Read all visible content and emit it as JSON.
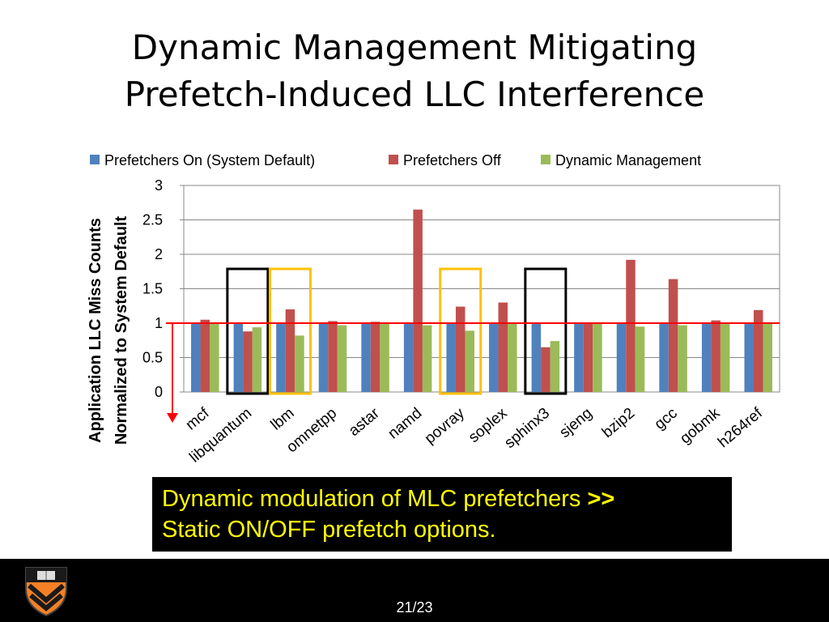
{
  "slide": {
    "title_line1": "Dynamic Management Mitigating",
    "title_line2": "Prefetch-Induced LLC Interference",
    "callout_text": "Dynamic modulation of MLC prefetchers ",
    "callout_bold": ">>",
    "callout_text2": "Static ON/OFF prefetch options.",
    "page_number": "21/23",
    "logo_icon": "princeton-shield-icon"
  },
  "chart_data": {
    "type": "bar",
    "categories": [
      "mcf",
      "libquantum",
      "lbm",
      "omnetpp",
      "astar",
      "namd",
      "povray",
      "soplex",
      "sphinx3",
      "sjeng",
      "bzip2",
      "gcc",
      "gobmk",
      "h264ref"
    ],
    "series": [
      {
        "name": "Prefetchers On (System Default)",
        "color": "#4f81bd",
        "values": [
          1,
          1,
          1,
          1,
          1,
          1,
          1,
          1,
          1,
          1,
          1,
          1,
          1,
          1
        ]
      },
      {
        "name": "Prefetchers Off",
        "color": "#c0504d",
        "values": [
          1.05,
          0.88,
          1.2,
          1.03,
          1.02,
          2.65,
          1.24,
          1.3,
          0.65,
          1.0,
          1.92,
          1.64,
          1.04,
          1.19
        ]
      },
      {
        "name": "Dynamic Management",
        "color": "#9bbb59",
        "values": [
          0.99,
          0.94,
          0.82,
          0.97,
          1.0,
          0.97,
          0.89,
          1.01,
          0.74,
          1.0,
          0.95,
          0.97,
          1.0,
          0.99
        ]
      }
    ],
    "ylabel_line1": "Application LLC Miss Counts",
    "ylabel_line2": "Normalized to System Default",
    "ylim": [
      0,
      3
    ],
    "yticks": [
      "0",
      "0.5",
      "1",
      "1.5",
      "2",
      "2.5",
      "3"
    ],
    "grid": true,
    "legend_position": "top",
    "reference_line": {
      "value": 1,
      "color": "#ff0000"
    },
    "highlight_boxes": [
      {
        "category": "libquantum",
        "color": "#000000"
      },
      {
        "category": "lbm",
        "color": "#ffc000"
      },
      {
        "category": "povray",
        "color": "#ffc000"
      },
      {
        "category": "sphinx3",
        "color": "#000000"
      }
    ]
  }
}
